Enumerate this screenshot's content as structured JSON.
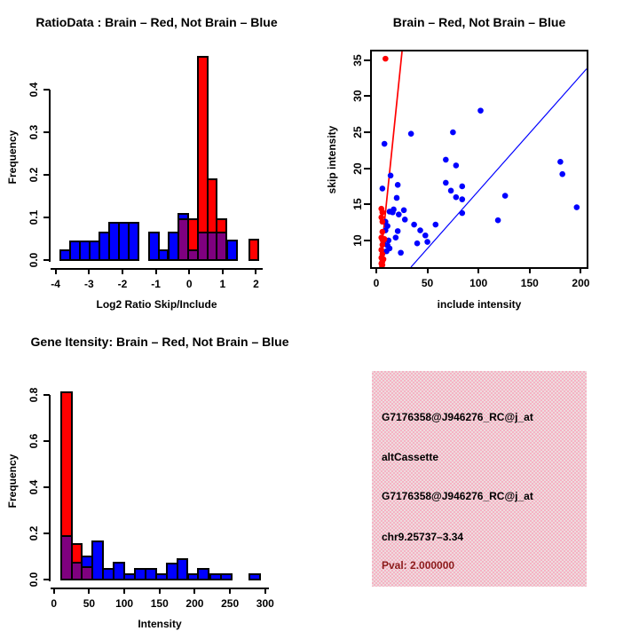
{
  "colors": {
    "red": "#ff0000",
    "blue": "#0000ff",
    "overlap_purple": "#7f007f",
    "axis_black": "#000000",
    "pval_red": "#8b1a1a",
    "info_bg_pink": "#f5b3c4",
    "info_bg_light": "#eedbde"
  },
  "chart_data": [
    {
      "id": "ratio_histogram",
      "type": "bar",
      "subtype": "overlaid-histogram",
      "title": "RatioData : Brain – Red, Not Brain – Blue",
      "xlabel": "Log2 Ratio Skip/Include",
      "ylabel": "Frequency",
      "legend": {
        "Brain": "red",
        "Not Brain": "blue"
      },
      "xlim": [
        -4.15,
        2.2
      ],
      "ylim": [
        0,
        0.485
      ],
      "grid": false,
      "xticks": [
        {
          "v": -4,
          "label": "-4"
        },
        {
          "v": -3,
          "label": "-3"
        },
        {
          "v": -2,
          "label": "-2"
        },
        {
          "v": -1,
          "label": "-1"
        },
        {
          "v": 0,
          "label": "0"
        },
        {
          "v": 1,
          "label": "1"
        },
        {
          "v": 2,
          "label": "2"
        }
      ],
      "yticks": [
        {
          "v": 0.0,
          "label": "0.0"
        },
        {
          "v": 0.1,
          "label": "0.1"
        },
        {
          "v": 0.2,
          "label": "0.2"
        },
        {
          "v": 0.3,
          "label": "0.3"
        },
        {
          "v": 0.4,
          "label": "0.4"
        }
      ],
      "bars": [
        {
          "x0": -3.85,
          "x1": -3.56,
          "blue": 0.022,
          "red": 0
        },
        {
          "x0": -3.56,
          "x1": -3.27,
          "blue": 0.043,
          "red": 0
        },
        {
          "x0": -3.27,
          "x1": -2.98,
          "blue": 0.043,
          "red": 0
        },
        {
          "x0": -2.98,
          "x1": -2.69,
          "blue": 0.043,
          "red": 0
        },
        {
          "x0": -2.69,
          "x1": -2.4,
          "blue": 0.065,
          "red": 0
        },
        {
          "x0": -2.4,
          "x1": -2.11,
          "blue": 0.087,
          "red": 0
        },
        {
          "x0": -2.11,
          "x1": -1.82,
          "blue": 0.087,
          "red": 0
        },
        {
          "x0": -1.82,
          "x1": -1.53,
          "blue": 0.087,
          "red": 0
        },
        {
          "x0": -1.21,
          "x1": -0.92,
          "blue": 0.065,
          "red": 0
        },
        {
          "x0": -0.92,
          "x1": -0.63,
          "blue": 0.022,
          "red": 0
        },
        {
          "x0": -0.62,
          "x1": -0.33,
          "blue": 0.065,
          "red": 0
        },
        {
          "x0": -0.33,
          "x1": -0.04,
          "blue": 0.108,
          "red": 0.096
        },
        {
          "x0": -0.04,
          "x1": 0.25,
          "blue": 0.023,
          "red": 0.096
        },
        {
          "x0": 0.25,
          "x1": 0.54,
          "blue": 0.065,
          "red": 0.476
        },
        {
          "x0": 0.54,
          "x1": 0.83,
          "blue": 0.065,
          "red": 0.19
        },
        {
          "x0": 0.83,
          "x1": 1.12,
          "blue": 0.065,
          "red": 0.096
        },
        {
          "x0": 1.14,
          "x1": 1.43,
          "blue": 0.046,
          "red": 0
        },
        {
          "x0": 1.79,
          "x1": 2.08,
          "blue": 0,
          "red": 0.047
        }
      ]
    },
    {
      "id": "intensity_scatter",
      "type": "scatter",
      "title": "Brain – Red, Not Brain – Blue",
      "xlabel": "include intensity",
      "ylabel": "skip intensity",
      "legend": {
        "Brain": "red",
        "Not Brain": "blue"
      },
      "xlim": [
        -4.3,
        205.7
      ],
      "ylim": [
        6.3,
        36.2
      ],
      "grid": false,
      "box": true,
      "xticks": [
        {
          "v": 0,
          "label": "0"
        },
        {
          "v": 50,
          "label": "50"
        },
        {
          "v": 100,
          "label": "100"
        },
        {
          "v": 150,
          "label": "150"
        },
        {
          "v": 200,
          "label": "200"
        }
      ],
      "yticks": [
        {
          "v": 10,
          "label": "10"
        },
        {
          "v": 15,
          "label": "15"
        },
        {
          "v": 20,
          "label": "20"
        },
        {
          "v": 25,
          "label": "25"
        },
        {
          "v": 30,
          "label": "30"
        },
        {
          "v": 35,
          "label": "35"
        }
      ],
      "blue_points": [
        [
          8,
          23.4
        ],
        [
          34,
          24.8
        ],
        [
          75,
          25.0
        ],
        [
          102,
          28.0
        ],
        [
          68,
          21.2
        ],
        [
          78,
          20.4
        ],
        [
          180,
          20.9
        ],
        [
          182,
          19.2
        ],
        [
          14,
          19.0
        ],
        [
          6,
          17.2
        ],
        [
          21,
          17.7
        ],
        [
          68,
          18.0
        ],
        [
          84,
          17.5
        ],
        [
          73,
          16.9
        ],
        [
          78,
          16.0
        ],
        [
          84,
          15.7
        ],
        [
          126,
          16.2
        ],
        [
          119,
          12.8
        ],
        [
          196,
          14.6
        ],
        [
          84,
          13.8
        ],
        [
          20,
          15.9
        ],
        [
          17,
          14.3
        ],
        [
          27,
          14.2
        ],
        [
          13,
          14.0
        ],
        [
          22,
          13.6
        ],
        [
          28,
          12.9
        ],
        [
          37,
          12.2
        ],
        [
          43,
          11.4
        ],
        [
          58,
          12.2
        ],
        [
          48,
          10.7
        ],
        [
          40,
          9.6
        ],
        [
          50,
          9.8
        ],
        [
          21,
          11.3
        ],
        [
          19,
          10.4
        ],
        [
          12,
          10.0
        ],
        [
          11,
          9.3
        ],
        [
          24,
          8.3
        ],
        [
          10,
          8.5
        ],
        [
          9,
          12.6
        ],
        [
          11,
          12.0
        ],
        [
          9,
          11.4
        ],
        [
          13,
          8.9
        ],
        [
          7,
          9.7
        ],
        [
          16,
          13.9
        ]
      ],
      "red_points": [
        [
          9,
          35.2
        ],
        [
          5,
          14.4
        ],
        [
          6,
          13.9
        ],
        [
          5,
          13.2
        ],
        [
          6,
          12.6
        ],
        [
          6,
          11.2
        ],
        [
          5,
          10.4
        ],
        [
          6,
          10.1
        ],
        [
          7,
          10.0
        ],
        [
          8,
          10.2
        ],
        [
          6,
          9.4
        ],
        [
          5,
          8.7
        ],
        [
          6,
          8.1
        ],
        [
          5,
          7.6
        ],
        [
          6,
          7.1
        ],
        [
          5,
          6.8
        ],
        [
          7,
          7.4
        ],
        [
          6,
          6.6
        ]
      ],
      "red_line": {
        "x0": 3.5,
        "y0": 6.3,
        "x1": 25.2,
        "y1": 36.2
      },
      "blue_line": {
        "x0": 33.9,
        "y0": 6.3,
        "x1": 205.7,
        "y1": 33.8
      }
    },
    {
      "id": "gene_intensity_histogram",
      "type": "bar",
      "subtype": "overlaid-histogram",
      "title": "Gene Itensity: Brain – Red, Not Brain – Blue",
      "xlabel": "Intensity",
      "ylabel": "Frequency",
      "legend": {
        "Brain": "red",
        "Not Brain": "blue"
      },
      "xlim": [
        -4.7,
        305.3
      ],
      "ylim": [
        0,
        0.858
      ],
      "grid": false,
      "xticks": [
        {
          "v": 0,
          "label": "0"
        },
        {
          "v": 50,
          "label": "50"
        },
        {
          "v": 100,
          "label": "100"
        },
        {
          "v": 150,
          "label": "150"
        },
        {
          "v": 200,
          "label": "200"
        },
        {
          "v": 250,
          "label": "250"
        },
        {
          "v": 300,
          "label": "300"
        }
      ],
      "yticks": [
        {
          "v": 0.0,
          "label": "0.0"
        },
        {
          "v": 0.2,
          "label": "0.2"
        },
        {
          "v": 0.4,
          "label": "0.4"
        },
        {
          "v": 0.6,
          "label": "0.6"
        },
        {
          "v": 0.8,
          "label": "0.8"
        }
      ],
      "bars": [
        {
          "x0": 10,
          "x1": 25,
          "blue": 0.19,
          "red": 0.81
        },
        {
          "x0": 25,
          "x1": 40,
          "blue": 0.072,
          "red": 0.155
        },
        {
          "x0": 40,
          "x1": 55,
          "blue": 0.1,
          "red": 0.055
        },
        {
          "x0": 55,
          "x1": 70,
          "blue": 0.165,
          "red": 0
        },
        {
          "x0": 70,
          "x1": 85,
          "blue": 0.046,
          "red": 0
        },
        {
          "x0": 85,
          "x1": 100,
          "blue": 0.072,
          "red": 0
        },
        {
          "x0": 100,
          "x1": 115,
          "blue": 0.024,
          "red": 0
        },
        {
          "x0": 115,
          "x1": 130,
          "blue": 0.046,
          "red": 0
        },
        {
          "x0": 130,
          "x1": 145,
          "blue": 0.046,
          "red": 0
        },
        {
          "x0": 145,
          "x1": 160,
          "blue": 0.024,
          "red": 0
        },
        {
          "x0": 160,
          "x1": 175,
          "blue": 0.07,
          "red": 0
        },
        {
          "x0": 175,
          "x1": 190,
          "blue": 0.09,
          "red": 0
        },
        {
          "x0": 190,
          "x1": 205,
          "blue": 0.024,
          "red": 0
        },
        {
          "x0": 205,
          "x1": 220,
          "blue": 0.046,
          "red": 0
        },
        {
          "x0": 222,
          "x1": 237,
          "blue": 0.024,
          "red": 0
        },
        {
          "x0": 237,
          "x1": 252,
          "blue": 0.024,
          "red": 0
        },
        {
          "x0": 278,
          "x1": 293,
          "blue": 0.024,
          "red": 0
        }
      ]
    }
  ],
  "info_panel": {
    "lines": [
      {
        "text": "G7176358@J946276_RC@j_at",
        "color": "#000000"
      },
      {
        "text": "altCassette",
        "color": "#000000"
      },
      {
        "text": "G7176358@J946276_RC@j_at",
        "color": "#000000"
      },
      {
        "text": "chr9.25737–3.34",
        "color": "#000000"
      },
      {
        "text": "Pval: 2.000000",
        "color": "#8b1a1a"
      }
    ]
  }
}
